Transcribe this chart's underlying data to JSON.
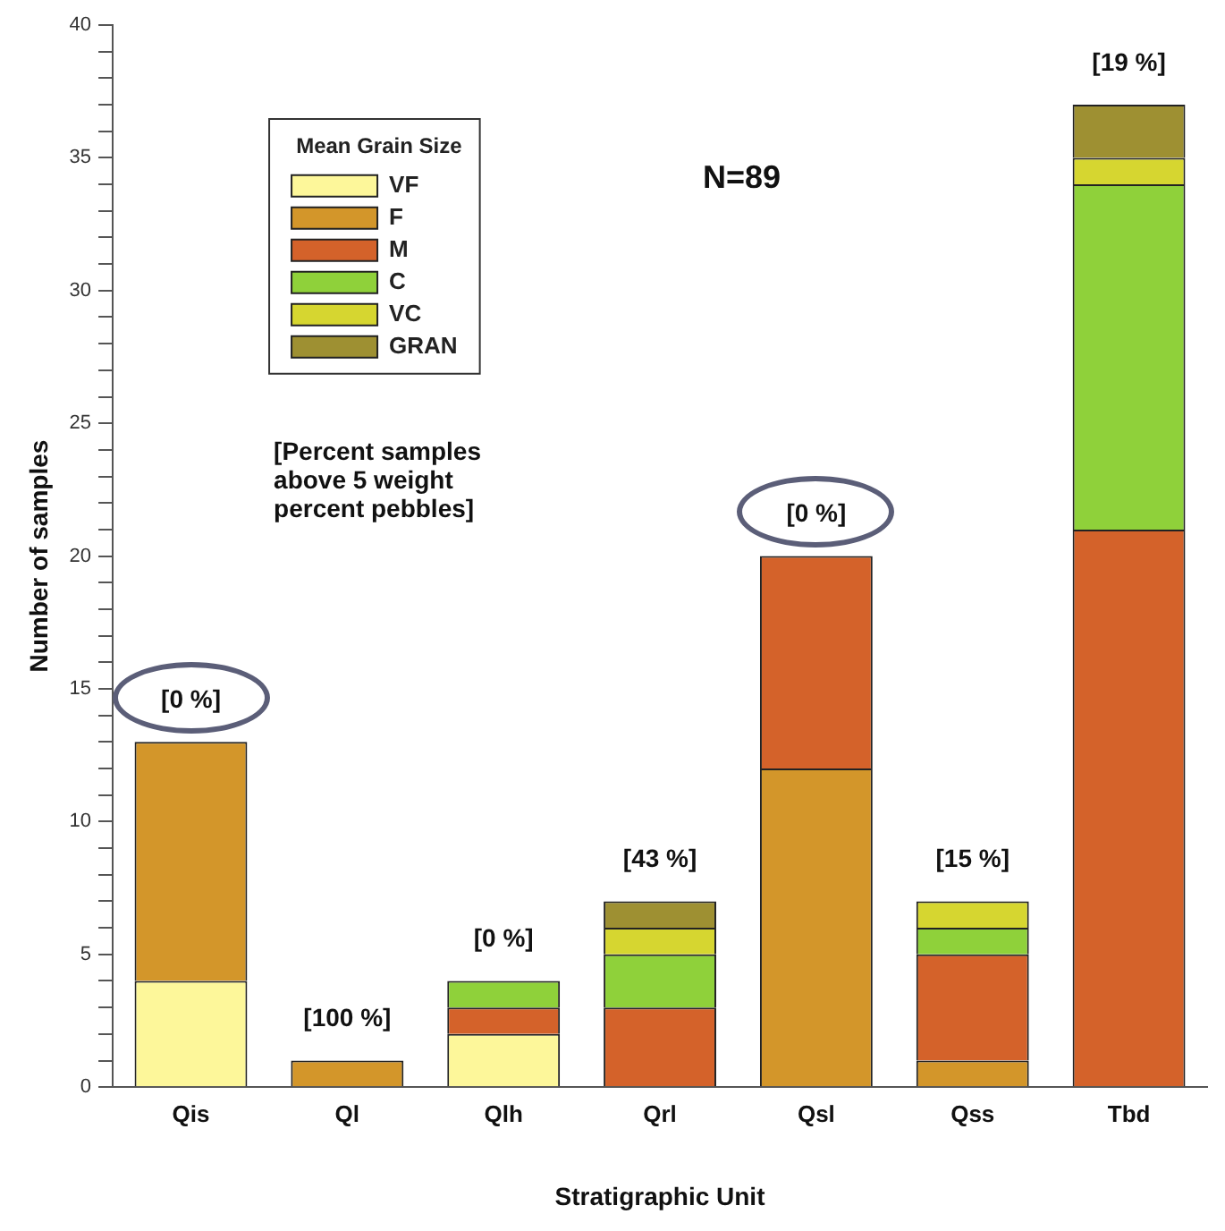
{
  "chart_data": {
    "type": "bar",
    "stacked": true,
    "xlabel": "Stratigraphic Unit",
    "ylabel": "Number of samples",
    "legend_title": "Mean Grain Size",
    "legend": "top left",
    "grid": false,
    "categories": [
      "Qis",
      "Ql",
      "Qlh",
      "Qrl",
      "Qsl",
      "Qss",
      "Tbd"
    ],
    "series": [
      {
        "name": "VF",
        "color": "#fdf79a",
        "values": [
          4,
          0,
          2,
          0,
          0,
          0,
          0
        ]
      },
      {
        "name": "F",
        "color": "#d3962a",
        "values": [
          9,
          1,
          0,
          0,
          12,
          1,
          0
        ]
      },
      {
        "name": "M",
        "color": "#d4622a",
        "values": [
          0,
          0,
          1,
          3,
          8,
          4,
          21
        ]
      },
      {
        "name": "C",
        "color": "#8fd13a",
        "values": [
          0,
          0,
          1,
          2,
          0,
          1,
          13
        ]
      },
      {
        "name": "VC",
        "color": "#d6d630",
        "values": [
          0,
          0,
          0,
          1,
          0,
          1,
          1
        ]
      },
      {
        "name": "GRAN",
        "color": "#9e9032",
        "values": [
          0,
          0,
          0,
          1,
          0,
          0,
          2
        ]
      }
    ],
    "ylim": [
      0,
      40
    ],
    "yticks": [
      0,
      {
        "value": 1,
        "label": null
      },
      {
        "value": 2,
        "label": null
      },
      {
        "value": 3,
        "label": null
      },
      {
        "value": 4,
        "label": null
      },
      5,
      {
        "value": 6,
        "label": null
      },
      {
        "value": 7,
        "label": null
      },
      {
        "value": 8,
        "label": null
      },
      {
        "value": 9,
        "label": null
      },
      10,
      {
        "value": 11,
        "label": null
      },
      {
        "value": 12,
        "label": null
      },
      {
        "value": 13,
        "label": null
      },
      {
        "value": 14,
        "label": null
      },
      15,
      {
        "value": 16,
        "label": null
      },
      {
        "value": 17,
        "label": null
      },
      {
        "value": 18,
        "label": null
      },
      {
        "value": 19,
        "label": null
      },
      20,
      {
        "value": 21,
        "label": null
      },
      {
        "value": 22,
        "label": null
      },
      {
        "value": 23,
        "label": null
      },
      {
        "value": 24,
        "label": null
      },
      25,
      {
        "value": 26,
        "label": null
      },
      {
        "value": 27,
        "label": null
      },
      {
        "value": 28,
        "label": null
      },
      {
        "value": 29,
        "label": null
      },
      30,
      {
        "value": 31,
        "label": null
      },
      {
        "value": 32,
        "label": null
      },
      {
        "value": 33,
        "label": null
      },
      {
        "value": 34,
        "label": null
      },
      35,
      {
        "value": 36,
        "label": null
      },
      {
        "value": 37,
        "label": null
      },
      {
        "value": 38,
        "label": null
      },
      {
        "value": 39,
        "label": null
      },
      40
    ],
    "annotations": [
      {
        "text": "[0 %]",
        "x": "Qis",
        "y": 13
      },
      {
        "text": "[100 %]",
        "x": "Ql",
        "y": 1
      },
      {
        "text": "[0 %]",
        "x": "Qlh",
        "y": 4
      },
      {
        "text": "[43 %]",
        "x": "Qrl",
        "y": 7
      },
      {
        "text": "[0 %]",
        "x": "Qsl",
        "y": 20
      },
      {
        "text": "[15 %]",
        "x": "Qss",
        "y": 7
      },
      {
        "text": "[19 %]",
        "x": "Tbd",
        "y": 37
      },
      "N=89",
      "[Percent samples above 5 weight percent pebbles]"
    ]
  }
}
